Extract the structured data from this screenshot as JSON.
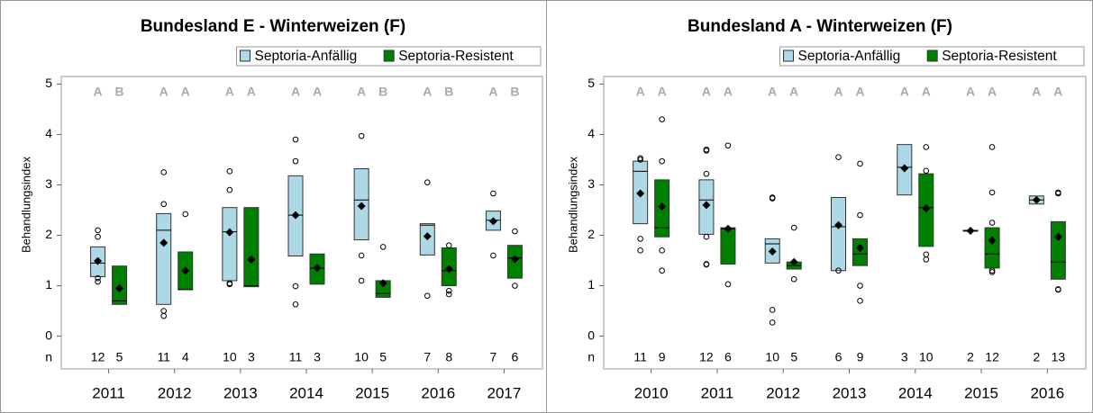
{
  "chart_data": [
    {
      "type": "box",
      "title": "Bundesland E - Winterweizen (F)",
      "ylabel": "Behandlungsindex",
      "n_label": "n",
      "ylim": [
        -0.65,
        5.15
      ],
      "yticks": [
        0,
        1,
        2,
        3,
        4,
        5
      ],
      "categories": [
        "2011",
        "2012",
        "2013",
        "2014",
        "2015",
        "2016",
        "2017"
      ],
      "series": [
        {
          "name": "Septoria-Anfällig",
          "color": "#add8e6",
          "q1": [
            1.18,
            0.63,
            1.1,
            1.59,
            1.91,
            1.61,
            2.1
          ],
          "median": [
            1.45,
            2.1,
            2.07,
            2.4,
            2.7,
            2.2,
            2.3
          ],
          "q3": [
            1.77,
            2.43,
            2.55,
            3.18,
            3.32,
            2.23,
            2.48
          ],
          "mean": [
            1.49,
            1.85,
            2.06,
            2.4,
            2.58,
            1.98,
            2.28
          ],
          "outliers": [
            [
              2.1,
              1.97,
              1.15,
              1.08
            ],
            [
              3.25,
              2.62,
              0.5,
              0.4
            ],
            [
              3.27,
              2.9,
              1.05,
              1.03
            ],
            [
              3.9,
              3.47,
              0.99,
              0.63
            ],
            [
              3.97,
              1.6,
              1.1
            ],
            [
              3.05,
              0.8
            ],
            [
              2.83,
              1.6
            ]
          ],
          "n": [
            12,
            11,
            10,
            11,
            10,
            7,
            7
          ],
          "letters": [
            "A",
            "A",
            "A",
            "A",
            "A",
            "A",
            "A"
          ]
        },
        {
          "name": "Septoria-Resistent",
          "color": "#008000",
          "q1": [
            0.63,
            0.92,
            0.98,
            1.03,
            0.77,
            1.0,
            1.15
          ],
          "median": [
            0.7,
            0.93,
            1.0,
            1.35,
            0.85,
            1.3,
            1.55
          ],
          "q3": [
            1.39,
            1.67,
            2.55,
            1.63,
            1.1,
            1.75,
            1.8
          ],
          "mean": [
            0.95,
            1.3,
            1.52,
            1.35,
            1.05,
            1.33,
            1.53
          ],
          "outliers": [
            [],
            [
              2.42
            ],
            [],
            [],
            [
              1.77
            ],
            [
              1.8,
              0.9,
              0.83
            ],
            [
              2.08,
              1.0
            ]
          ],
          "n": [
            5,
            4,
            3,
            3,
            5,
            8,
            6
          ],
          "letters": [
            "B",
            "A",
            "A",
            "A",
            "B",
            "B",
            "B"
          ]
        }
      ]
    },
    {
      "type": "box",
      "title": "Bundesland A - Winterweizen (F)",
      "ylabel": "Behandlungsindex",
      "n_label": "n",
      "ylim": [
        -0.65,
        5.15
      ],
      "yticks": [
        0,
        1,
        2,
        3,
        4,
        5
      ],
      "categories": [
        "2010",
        "2011",
        "2012",
        "2013",
        "2014",
        "2015",
        "2016"
      ],
      "series": [
        {
          "name": "Septoria-Anfällig",
          "color": "#add8e6",
          "q1": [
            2.23,
            2.02,
            1.45,
            1.3,
            2.8,
            2.08,
            2.62
          ],
          "median": [
            3.27,
            2.7,
            1.83,
            2.17,
            3.35,
            2.09,
            2.7
          ],
          "q3": [
            3.47,
            3.1,
            1.93,
            2.75,
            3.8,
            2.1,
            2.78
          ],
          "mean": [
            2.83,
            2.6,
            1.68,
            2.2,
            3.33,
            2.09,
            2.7
          ],
          "outliers": [
            [
              3.53,
              3.5,
              1.93,
              1.7
            ],
            [
              3.7,
              3.68,
              3.22,
              1.97,
              1.43,
              1.42
            ],
            [
              2.75,
              2.73,
              0.52,
              0.27
            ],
            [
              3.55,
              1.3
            ],
            [],
            [],
            []
          ],
          "n": [
            11,
            12,
            10,
            6,
            3,
            2,
            2
          ],
          "letters": [
            "A",
            "A",
            "A",
            "A",
            "A",
            "A",
            "A"
          ]
        },
        {
          "name": "Septoria-Resistent",
          "color": "#008000",
          "q1": [
            1.97,
            1.43,
            1.33,
            1.4,
            1.78,
            1.35,
            1.13
          ],
          "median": [
            2.15,
            2.13,
            1.4,
            1.63,
            2.55,
            1.63,
            1.47
          ],
          "q3": [
            3.1,
            2.15,
            1.47,
            1.93,
            3.22,
            2.15,
            2.27
          ],
          "mean": [
            2.57,
            2.13,
            1.47,
            1.75,
            2.53,
            1.9,
            1.97
          ],
          "outliers": [
            [
              4.3,
              3.47,
              1.7,
              1.3
            ],
            [
              3.78,
              1.03
            ],
            [
              2.15,
              1.13
            ],
            [
              3.42,
              2.4,
              1.0,
              0.7
            ],
            [
              3.75,
              3.28,
              1.62,
              1.52
            ],
            [
              3.75,
              2.85,
              2.25,
              1.3,
              1.27
            ],
            [
              2.85,
              2.83,
              0.93,
              0.92
            ]
          ],
          "n": [
            9,
            6,
            5,
            9,
            10,
            12,
            13
          ],
          "letters": [
            "A",
            "A",
            "A",
            "A",
            "A",
            "A",
            "A"
          ]
        }
      ]
    }
  ]
}
